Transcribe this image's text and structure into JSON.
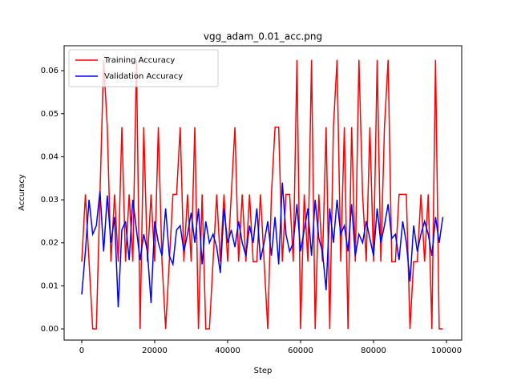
{
  "chart_data": {
    "type": "line",
    "title": "vgg_adam_0.01_acc.png",
    "x_label": "Step",
    "y_label": "Accuracy",
    "x": [
      0,
      1000,
      2000,
      3000,
      4000,
      5000,
      6000,
      7000,
      8000,
      9000,
      10000,
      11000,
      12000,
      13000,
      14000,
      15000,
      16000,
      17000,
      18000,
      19000,
      20000,
      21000,
      22000,
      23000,
      24000,
      25000,
      26000,
      27000,
      28000,
      29000,
      30000,
      31000,
      32000,
      33000,
      34000,
      35000,
      36000,
      37000,
      38000,
      39000,
      40000,
      41000,
      42000,
      43000,
      44000,
      45000,
      46000,
      47000,
      48000,
      49000,
      50000,
      51000,
      52000,
      53000,
      54000,
      55000,
      56000,
      57000,
      58000,
      59000,
      60000,
      61000,
      62000,
      63000,
      64000,
      65000,
      66000,
      67000,
      68000,
      69000,
      70000,
      71000,
      72000,
      73000,
      74000,
      75000,
      76000,
      77000,
      78000,
      79000,
      80000,
      81000,
      82000,
      83000,
      84000,
      85000,
      86000,
      87000,
      88000,
      89000,
      90000,
      91000,
      92000,
      93000,
      94000,
      95000,
      96000,
      97000,
      98000,
      99000
    ],
    "series": [
      {
        "name": "Training Accuracy",
        "color": "#ff0000",
        "values": [
          0.015625,
          0.03125,
          0.015625,
          0,
          0,
          0.03125,
          0.0625,
          0.046875,
          0.015625,
          0.03125,
          0.015625,
          0.046875,
          0.015625,
          0.03125,
          0.015625,
          0.0625,
          0,
          0.046875,
          0.015625,
          0.03125,
          0.015625,
          0.046875,
          0.015625,
          0,
          0.015625,
          0.03125,
          0.03125,
          0.046875,
          0.015625,
          0.03125,
          0.015625,
          0.046875,
          0,
          0.03125,
          0,
          0,
          0.015625,
          0.03125,
          0.015625,
          0.03125,
          0.015625,
          0.03125,
          0.046875,
          0.015625,
          0.03125,
          0.015625,
          0.03125,
          0.015625,
          0.015625,
          0.03125,
          0.015625,
          0,
          0.03125,
          0.046875,
          0.046875,
          0.015625,
          0.03125,
          0.03125,
          0.015625,
          0.0625,
          0,
          0.03125,
          0.015625,
          0.0625,
          0,
          0.03125,
          0.015625,
          0.046875,
          0,
          0.046875,
          0.0625,
          0.015625,
          0.046875,
          0,
          0.046875,
          0.015625,
          0.0625,
          0.03125,
          0.015625,
          0.046875,
          0.015625,
          0.0625,
          0.015625,
          0.046875,
          0.0625,
          0.015625,
          0.015625,
          0.03125,
          0.03125,
          0.03125,
          0,
          0.015625,
          0.015625,
          0.03125,
          0.015625,
          0.03125,
          0,
          0.0625,
          0,
          0
        ]
      },
      {
        "name": "Validation Accuracy",
        "color": "#0000ff",
        "values": [
          0.008,
          0.018,
          0.03,
          0.022,
          0.024,
          0.032,
          0.018,
          0.031,
          0.02,
          0.026,
          0.005,
          0.023,
          0.025,
          0.016,
          0.03,
          0.023,
          0.016,
          0.022,
          0.018,
          0.006,
          0.025,
          0.02,
          0.017,
          0.028,
          0.017,
          0.015,
          0.023,
          0.024,
          0.018,
          0.022,
          0.027,
          0.02,
          0.028,
          0.015,
          0.025,
          0.02,
          0.022,
          0.019,
          0.013,
          0.028,
          0.02,
          0.023,
          0.019,
          0.025,
          0.02,
          0.017,
          0.024,
          0.02,
          0.028,
          0.016,
          0.02,
          0.025,
          0.017,
          0.026,
          0.015,
          0.034,
          0.022,
          0.018,
          0.02,
          0.029,
          0.018,
          0.023,
          0.028,
          0.017,
          0.03,
          0.021,
          0.018,
          0.009,
          0.028,
          0.02,
          0.03,
          0.022,
          0.024,
          0.018,
          0.029,
          0.017,
          0.022,
          0.02,
          0.025,
          0.021,
          0.017,
          0.028,
          0.02,
          0.024,
          0.029,
          0.021,
          0.022,
          0.016,
          0.025,
          0.02,
          0.011,
          0.024,
          0.018,
          0.022,
          0.025,
          0.022,
          0.017,
          0.026,
          0.02,
          0.026
        ]
      }
    ],
    "xlim": [
      -4835,
      104176
    ],
    "ylim": [
      -0.0026,
      0.0658
    ],
    "xticks": [
      0,
      20000,
      40000,
      60000,
      80000,
      100000
    ],
    "yticks": [
      {
        "value": 0,
        "label": "0.00"
      },
      {
        "value": 0.01,
        "label": "0.01"
      },
      {
        "value": 0.02,
        "label": "0.02"
      },
      {
        "value": 0.03,
        "label": "0.03"
      },
      {
        "value": 0.04,
        "label": "0.04"
      },
      {
        "value": 0.05,
        "label": "0.05"
      },
      {
        "value": 0.06,
        "label": "0.06"
      }
    ],
    "legend": "upper left",
    "grid": false
  }
}
